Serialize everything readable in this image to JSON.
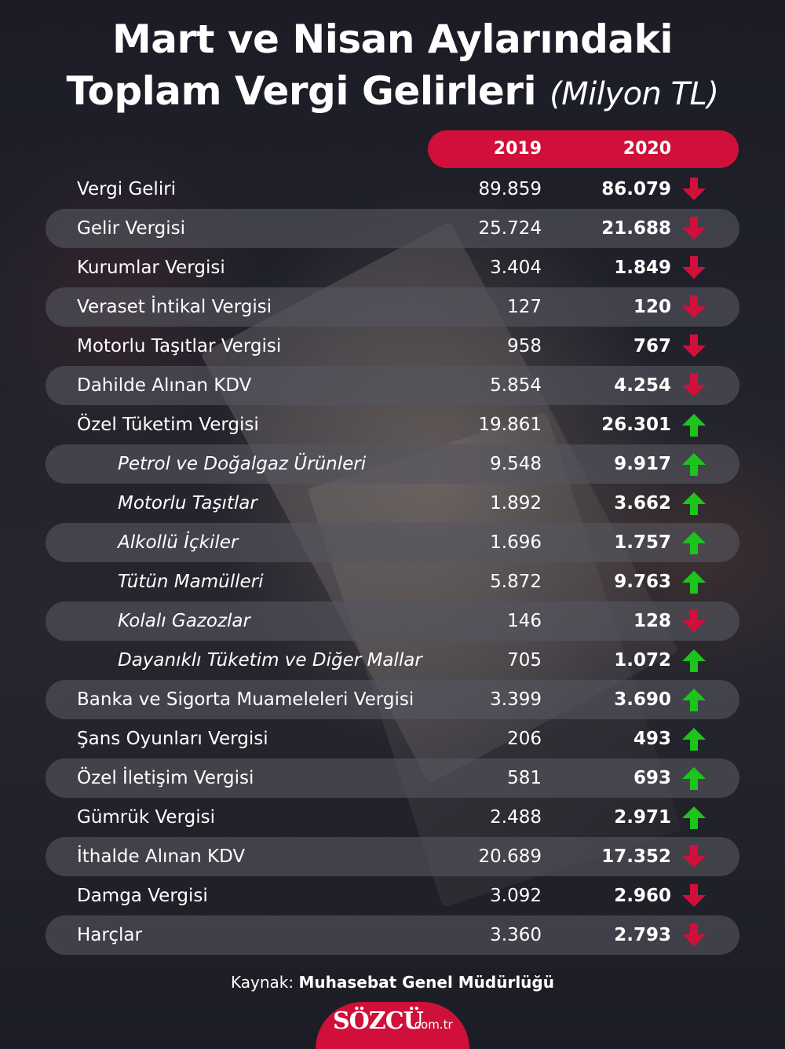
{
  "title": {
    "line1": "Mart ve Nisan Aylarındaki",
    "line2": "Toplam Vergi Gelirleri",
    "unit": "(Milyon TL)"
  },
  "header": {
    "year1": "2019",
    "year2": "2020"
  },
  "colors": {
    "accent": "#d0103a",
    "down": "#d0103a",
    "up": "#1cc41c",
    "stripe": "#55555f"
  },
  "rows": [
    {
      "label": "Vergi Geliri",
      "v2019": "89.859",
      "v2020": "86.079",
      "trend": "down"
    },
    {
      "label": "Gelir Vergisi",
      "v2019": "25.724",
      "v2020": "21.688",
      "trend": "down"
    },
    {
      "label": "Kurumlar Vergisi",
      "v2019": "3.404",
      "v2020": "1.849",
      "trend": "down"
    },
    {
      "label": "Veraset İntikal Vergisi",
      "v2019": "127",
      "v2020": "120",
      "trend": "down"
    },
    {
      "label": "Motorlu Taşıtlar Vergisi",
      "v2019": "958",
      "v2020": "767",
      "trend": "down"
    },
    {
      "label": "Dahilde Alınan KDV",
      "v2019": "5.854",
      "v2020": "4.254",
      "trend": "down"
    },
    {
      "label": "Özel Tüketim Vergisi",
      "v2019": "19.861",
      "v2020": "26.301",
      "trend": "up"
    },
    {
      "label": "Petrol ve Doğalgaz Ürünleri",
      "v2019": "9.548",
      "v2020": "9.917",
      "trend": "up"
    },
    {
      "label": "Motorlu Taşıtlar",
      "v2019": "1.892",
      "v2020": "3.662",
      "trend": "up"
    },
    {
      "label": "Alkollü İçkiler",
      "v2019": "1.696",
      "v2020": "1.757",
      "trend": "up"
    },
    {
      "label": "Tütün Mamülleri",
      "v2019": "5.872",
      "v2020": "9.763",
      "trend": "up"
    },
    {
      "label": "Kolalı Gazozlar",
      "v2019": "146",
      "v2020": "128",
      "trend": "down"
    },
    {
      "label": "Dayanıklı Tüketim ve Diğer Mallar",
      "v2019": "705",
      "v2020": "1.072",
      "trend": "up"
    },
    {
      "label": "Banka ve Sigorta Muameleleri Vergisi",
      "v2019": "3.399",
      "v2020": "3.690",
      "trend": "up"
    },
    {
      "label": "Şans Oyunları Vergisi",
      "v2019": "206",
      "v2020": "493",
      "trend": "up"
    },
    {
      "label": "Özel İletişim Vergisi",
      "v2019": "581",
      "v2020": "693",
      "trend": "up"
    },
    {
      "label": "Gümrük Vergisi",
      "v2019": "2.488",
      "v2020": "2.971",
      "trend": "up"
    },
    {
      "label": "İthalde Alınan KDV",
      "v2019": "20.689",
      "v2020": "17.352",
      "trend": "down"
    },
    {
      "label": "Damga Vergisi",
      "v2019": "3.092",
      "v2020": "2.960",
      "trend": "down"
    },
    {
      "label": "Harçlar",
      "v2019": "3.360",
      "v2020": "2.793",
      "trend": "down"
    }
  ],
  "source": {
    "prefix": "Kaynak: ",
    "name": "Muhasebat Genel Müdürlüğü"
  },
  "logo": {
    "main": "SÖZCÜ",
    "tld": ".com.tr"
  }
}
